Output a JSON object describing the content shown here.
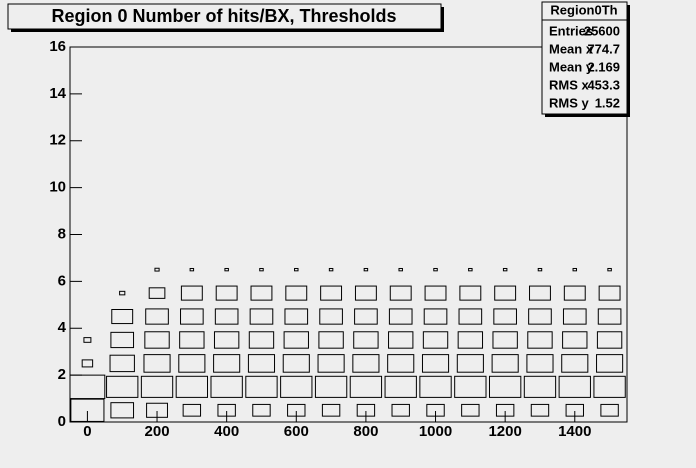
{
  "chart_data": {
    "type": "box2d",
    "title": "Region 0 Number of hits/BX, Thresholds",
    "xlim": [
      -50,
      1550
    ],
    "ylim": [
      0,
      16
    ],
    "xticks": [
      0,
      200,
      400,
      600,
      800,
      1000,
      1200,
      1400
    ],
    "yticks": [
      0,
      2,
      4,
      6,
      8,
      10,
      12,
      14,
      16
    ],
    "xbins": [
      -50,
      50,
      150,
      250,
      350,
      450,
      550,
      650,
      750,
      850,
      950,
      1050,
      1150,
      1250,
      1350,
      1450,
      1550
    ],
    "ybins": [
      0,
      1,
      2,
      3,
      4,
      5,
      6,
      7
    ],
    "counts": [
      [
        380,
        260,
        240,
        200,
        200,
        200,
        200,
        200,
        200,
        200,
        200,
        200,
        200,
        200,
        200,
        200
      ],
      [
        400,
        360,
        360,
        360,
        360,
        360,
        360,
        360,
        360,
        360,
        360,
        360,
        360,
        360,
        360,
        360
      ],
      [
        120,
        280,
        300,
        300,
        300,
        300,
        300,
        300,
        300,
        300,
        300,
        300,
        300,
        300,
        300,
        300
      ],
      [
        80,
        260,
        280,
        280,
        280,
        280,
        280,
        280,
        280,
        280,
        280,
        280,
        280,
        280,
        280,
        280
      ],
      [
        0,
        240,
        260,
        260,
        260,
        260,
        260,
        260,
        260,
        260,
        260,
        260,
        260,
        260,
        260,
        260
      ],
      [
        0,
        60,
        180,
        240,
        240,
        240,
        240,
        240,
        240,
        240,
        240,
        240,
        240,
        240,
        240,
        240
      ],
      [
        0,
        0,
        48,
        40,
        40,
        40,
        40,
        40,
        40,
        40,
        40,
        40,
        40,
        40,
        40,
        40
      ]
    ],
    "stats": {
      "title": "Region0Th",
      "rows": [
        [
          "Entries",
          25600
        ],
        [
          "Mean x",
          774.7
        ],
        [
          "Mean y",
          2.169
        ],
        [
          "RMS x",
          453.3
        ],
        [
          "RMS y",
          1.52
        ]
      ]
    }
  }
}
